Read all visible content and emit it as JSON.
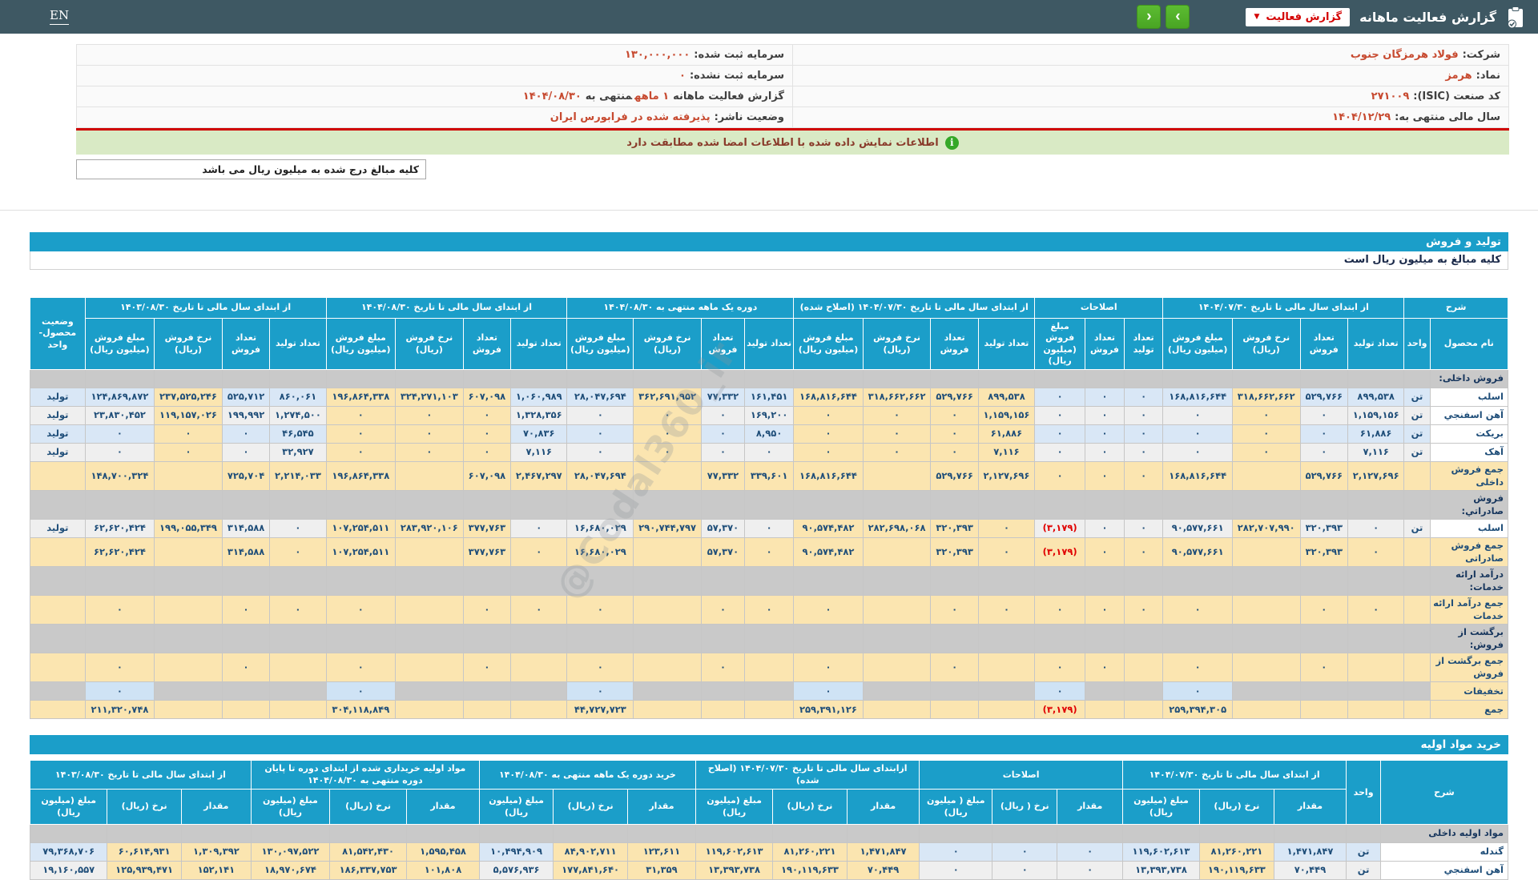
{
  "header": {
    "lang": "EN",
    "title": "گزارش فعالیت ماهانه",
    "dropdown_label": "گزارش فعالیت",
    "nav_prev": "‹",
    "nav_next": "›"
  },
  "info": {
    "rows": [
      {
        "right": {
          "label": "شرکت:",
          "value": "فولاد هرمزگان جنوب"
        },
        "left": {
          "label": "سرمایه ثبت شده:",
          "value": "۱۳۰,۰۰۰,۰۰۰"
        }
      },
      {
        "right": {
          "label": "نماد:",
          "value": "هرمز"
        },
        "left": {
          "label": "سرمایه ثبت نشده:",
          "value": "۰"
        }
      },
      {
        "right": {
          "label": "کد صنعت (ISIC):",
          "value": "۲۷۱۰۰۹"
        },
        "left": {
          "label": "گزارش فعالیت ماهانه",
          "value": "۱ ماهه",
          "label2": "منتهی به",
          "value2": "۱۴۰۴/۰۸/۳۰"
        }
      },
      {
        "right": {
          "label": "سال مالی منتهی به:",
          "value": "۱۴۰۴/۱۲/۲۹"
        },
        "left": {
          "label": "وضعیت ناشر:",
          "value": "پذیرفته شده در فرابورس ایران"
        }
      }
    ]
  },
  "notices": {
    "signed_match": "اطلاعات نمایش داده شده با اطلاعات امضا شده مطابقت دارد",
    "amounts_note": "کلیه مبالغ درج شده به میلیون ریال می باشد"
  },
  "sections": {
    "production": {
      "title": "تولید و فروش",
      "note": "کلیه مبالغ به میلیون ریال است"
    },
    "purchase": {
      "title": "خرید مواد اولیه"
    }
  },
  "watermark": "@Codal360_ir",
  "sales_table": {
    "header": [
      [
        {
          "t": "شرح",
          "cs": 2
        },
        {
          "t": "از ابتدای سال مالی تا تاریخ ۱۴۰۴/۰۷/۳۰",
          "cs": 4
        },
        {
          "t": "اصلاحات",
          "cs": 3
        },
        {
          "t": "از ابتدای سال مالی تا تاریخ ۱۴۰۴/۰۷/۳۰ (اصلاح شده)",
          "cs": 4
        },
        {
          "t": "دوره یک ماهه منتهی به ۱۴۰۴/۰۸/۳۰",
          "cs": 4
        },
        {
          "t": "از ابتدای سال مالی تا تاریخ ۱۴۰۴/۰۸/۳۰",
          "cs": 4
        },
        {
          "t": "از ابتدای سال مالی تا تاریخ ۱۴۰۳/۰۸/۳۰",
          "cs": 4
        },
        {
          "t": "وضعیت محصول-واحد",
          "rs": 2
        }
      ],
      [
        "نام محصول",
        "واحد",
        "تعداد تولید",
        "تعداد فروش",
        "نرخ فروش (ریال)",
        "مبلغ فروش (میلیون ریال)",
        "تعداد تولید",
        "تعداد فروش",
        "مبلغ فروش (میلیون ریال)",
        "تعداد تولید",
        "تعداد فروش",
        "نرخ فروش (ریال)",
        "مبلغ فروش (میلیون ریال)",
        "تعداد تولید",
        "تعداد فروش",
        "نرخ فروش (ریال)",
        "مبلغ فروش (میلیون ریال)",
        "تعداد تولید",
        "تعداد فروش",
        "نرخ فروش (ریال)",
        "مبلغ فروش (میلیون ریال)",
        "تعداد تولید",
        "تعداد فروش",
        "نرخ فروش (ریال)",
        "مبلغ فروش (میلیون ریال)"
      ]
    ],
    "rows": [
      {
        "type": "group",
        "cells": [
          "فروش داخلی:",
          "",
          "",
          "",
          "",
          "",
          "",
          "",
          "",
          "",
          "",
          "",
          "",
          "",
          "",
          "",
          "",
          "",
          "",
          "",
          "",
          "",
          "",
          "",
          "",
          ""
        ]
      },
      {
        "type": "data",
        "tint": "b",
        "cells": [
          "اسلب",
          "تن",
          "۸۹۹,۵۳۸",
          "۵۲۹,۷۶۶",
          "۳۱۸,۶۶۲,۶۶۲",
          "۱۶۸,۸۱۶,۶۴۴",
          "۰",
          "۰",
          "۰",
          "۸۹۹,۵۳۸",
          "۵۲۹,۷۶۶",
          "۳۱۸,۶۶۲,۶۶۲",
          "۱۶۸,۸۱۶,۶۴۴",
          "۱۶۱,۴۵۱",
          "۷۷,۳۳۲",
          "۳۶۲,۶۹۱,۹۵۲",
          "۲۸,۰۴۷,۶۹۴",
          "۱,۰۶۰,۹۸۹",
          "۶۰۷,۰۹۸",
          "۳۲۴,۲۷۱,۱۰۳",
          "۱۹۶,۸۶۴,۳۳۸",
          "۸۶۰,۰۶۱",
          "۵۲۵,۷۱۲",
          "۲۳۷,۵۲۵,۲۴۶",
          "۱۲۴,۸۶۹,۸۷۲",
          "تولید"
        ]
      },
      {
        "type": "data",
        "tint": "w",
        "cells": [
          "آهن اسفنجي",
          "تن",
          "۱,۱۵۹,۱۵۶",
          "۰",
          "۰",
          "۰",
          "۰",
          "۰",
          "۰",
          "۱,۱۵۹,۱۵۶",
          "۰",
          "۰",
          "۰",
          "۱۶۹,۲۰۰",
          "۰",
          "۰",
          "۰",
          "۱,۳۲۸,۳۵۶",
          "۰",
          "۰",
          "۰",
          "۱,۲۷۴,۵۰۰",
          "۱۹۹,۹۹۲",
          "۱۱۹,۱۵۷,۰۲۶",
          "۲۳,۸۳۰,۴۵۲",
          "تولید"
        ]
      },
      {
        "type": "data",
        "tint": "b",
        "cells": [
          "بریکت",
          "تن",
          "۶۱,۸۸۶",
          "۰",
          "۰",
          "۰",
          "۰",
          "۰",
          "۰",
          "۶۱,۸۸۶",
          "۰",
          "۰",
          "۰",
          "۸,۹۵۰",
          "۰",
          "۰",
          "۰",
          "۷۰,۸۳۶",
          "۰",
          "۰",
          "۰",
          "۴۶,۵۴۵",
          "۰",
          "۰",
          "۰",
          "تولید"
        ]
      },
      {
        "type": "data",
        "tint": "w",
        "cells": [
          "آهک",
          "تن",
          "۷,۱۱۶",
          "۰",
          "۰",
          "۰",
          "۰",
          "۰",
          "۰",
          "۷,۱۱۶",
          "۰",
          "۰",
          "۰",
          "۰",
          "۰",
          "۰",
          "۰",
          "۷,۱۱۶",
          "۰",
          "۰",
          "۰",
          "۳۲,۹۲۷",
          "۰",
          "۰",
          "۰",
          "تولید"
        ]
      },
      {
        "type": "total",
        "cells": [
          "جمع فروش داخلی",
          "",
          "۲,۱۲۷,۶۹۶",
          "۵۲۹,۷۶۶",
          "",
          "۱۶۸,۸۱۶,۶۴۴",
          "۰",
          "۰",
          "۰",
          "۲,۱۲۷,۶۹۶",
          "۵۲۹,۷۶۶",
          "",
          "۱۶۸,۸۱۶,۶۴۴",
          "۳۳۹,۶۰۱",
          "۷۷,۳۳۲",
          "",
          "۲۸,۰۴۷,۶۹۴",
          "۲,۴۶۷,۲۹۷",
          "۶۰۷,۰۹۸",
          "",
          "۱۹۶,۸۶۴,۳۳۸",
          "۲,۲۱۴,۰۳۳",
          "۷۲۵,۷۰۴",
          "",
          "۱۴۸,۷۰۰,۳۲۴",
          ""
        ]
      },
      {
        "type": "group",
        "cells": [
          "فروش صادراتي:",
          "",
          "",
          "",
          "",
          "",
          "",
          "",
          "",
          "",
          "",
          "",
          "",
          "",
          "",
          "",
          "",
          "",
          "",
          "",
          "",
          "",
          "",
          "",
          "",
          ""
        ]
      },
      {
        "type": "data",
        "tint": "w",
        "cells": [
          "اسلب",
          "تن",
          "۰",
          "۳۲۰,۳۹۳",
          "۲۸۲,۷۰۷,۹۹۰",
          "۹۰,۵۷۷,۶۶۱",
          "۰",
          "۰",
          "(۳,۱۷۹)",
          "۰",
          "۳۲۰,۳۹۳",
          "۲۸۲,۶۹۸,۰۶۸",
          "۹۰,۵۷۴,۴۸۲",
          "۰",
          "۵۷,۳۷۰",
          "۲۹۰,۷۴۴,۷۹۷",
          "۱۶,۶۸۰,۰۲۹",
          "۰",
          "۳۷۷,۷۶۳",
          "۲۸۳,۹۲۰,۱۰۶",
          "۱۰۷,۲۵۴,۵۱۱",
          "۰",
          "۳۱۴,۵۸۸",
          "۱۹۹,۰۵۵,۳۴۹",
          "۶۲,۶۲۰,۴۲۴",
          "تولید"
        ]
      },
      {
        "type": "total",
        "cells": [
          "جمع فروش صادراتی",
          "",
          "۰",
          "۳۲۰,۳۹۳",
          "",
          "۹۰,۵۷۷,۶۶۱",
          "۰",
          "۰",
          "(۳,۱۷۹)",
          "۰",
          "۳۲۰,۳۹۳",
          "",
          "۹۰,۵۷۴,۴۸۲",
          "۰",
          "۵۷,۳۷۰",
          "",
          "۱۶,۶۸۰,۰۲۹",
          "۰",
          "۳۷۷,۷۶۳",
          "",
          "۱۰۷,۲۵۴,۵۱۱",
          "۰",
          "۳۱۴,۵۸۸",
          "",
          "۶۲,۶۲۰,۴۲۴",
          ""
        ]
      },
      {
        "type": "group",
        "cells": [
          "درآمد ارائه خدمات:",
          "",
          "",
          "",
          "",
          "",
          "",
          "",
          "",
          "",
          "",
          "",
          "",
          "",
          "",
          "",
          "",
          "",
          "",
          "",
          "",
          "",
          "",
          "",
          "",
          ""
        ]
      },
      {
        "type": "total",
        "cells": [
          "جمع درآمد ارائه خدمات",
          "",
          "۰",
          "۰",
          "",
          "۰",
          "۰",
          "۰",
          "۰",
          "۰",
          "۰",
          "",
          "۰",
          "۰",
          "۰",
          "",
          "۰",
          "۰",
          "۰",
          "",
          "۰",
          "۰",
          "۰",
          "",
          "۰",
          ""
        ]
      },
      {
        "type": "group",
        "cells": [
          "برگشت از فروش:",
          "",
          "",
          "",
          "",
          "",
          "",
          "",
          "",
          "",
          "",
          "",
          "",
          "",
          "",
          "",
          "",
          "",
          "",
          "",
          "",
          "",
          "",
          "",
          "",
          ""
        ]
      },
      {
        "type": "total",
        "cells": [
          "جمع برگشت از فروش",
          "",
          "",
          "۰",
          "",
          "۰",
          "",
          "۰",
          "۰",
          "",
          "۰",
          "",
          "۰",
          "",
          "۰",
          "",
          "۰",
          "",
          "۰",
          "",
          "۰",
          "",
          "۰",
          "",
          "۰",
          ""
        ]
      },
      {
        "type": "disc",
        "cells": [
          "تخفیفات",
          "",
          "",
          "",
          "",
          "۰",
          "",
          "",
          "۰",
          "",
          "",
          "",
          "۰",
          "",
          "",
          "",
          "۰",
          "",
          "",
          "",
          "۰",
          "",
          "",
          "",
          "۰",
          ""
        ]
      },
      {
        "type": "grand",
        "cells": [
          "جمع",
          "",
          "",
          "",
          "",
          "۲۵۹,۳۹۴,۳۰۵",
          "",
          "",
          "(۳,۱۷۹)",
          "",
          "",
          "",
          "۲۵۹,۳۹۱,۱۲۶",
          "",
          "",
          "",
          "۴۴,۷۲۷,۷۲۳",
          "",
          "",
          "",
          "۳۰۴,۱۱۸,۸۴۹",
          "",
          "",
          "",
          "۲۱۱,۳۲۰,۷۴۸",
          ""
        ]
      }
    ]
  },
  "purchase_table": {
    "header": [
      [
        {
          "t": "شرح",
          "rs": 2
        },
        {
          "t": "واحد",
          "rs": 2
        },
        {
          "t": "از ابتدای سال مالی تا تاریخ ۱۴۰۴/۰۷/۳۰",
          "cs": 3
        },
        {
          "t": "اصلاحات",
          "cs": 3
        },
        {
          "t": "ازابتدای سال مالی تا تاریخ ۱۴۰۴/۰۷/۳۰ (اصلاح شده)",
          "cs": 3
        },
        {
          "t": "خرید دوره یک ماهه منتهی به ۱۴۰۴/۰۸/۳۰",
          "cs": 3
        },
        {
          "t": "مواد اولیه خریداری شده از ابتدای دوره تا پایان دوره منتهی به ۱۴۰۴/۰۸/۳۰",
          "cs": 3
        },
        {
          "t": "از ابتدای سال مالی تا تاریخ ۱۴۰۳/۰۸/۳۰",
          "cs": 3
        }
      ],
      [
        "مقدار",
        "نرخ (ریال)",
        "مبلغ (میلیون ریال)",
        "مقدار",
        "نرخ ( ریال)",
        "مبلغ ( میلیون ریال)",
        "مقدار",
        "نرخ (ریال)",
        "مبلغ (میلیون ریال)",
        "مقدار",
        "نرخ (ریال)",
        "مبلغ (میلیون ریال)",
        "مقدار",
        "نرخ (ریال)",
        "مبلغ (میلیون ریال)",
        "مقدار",
        "نرخ (ریال)",
        "مبلغ (میلیون ریال)"
      ]
    ],
    "rows": [
      {
        "type": "group",
        "cells": [
          "مواد اولیه داخلی",
          "",
          "",
          "",
          "",
          "",
          "",
          "",
          "",
          "",
          "",
          "",
          "",
          "",
          "",
          "",
          "",
          "",
          "",
          ""
        ]
      },
      {
        "type": "data",
        "tint": "b",
        "cells": [
          "گندله",
          "تن",
          "۱,۴۷۱,۸۴۷",
          "۸۱,۲۶۰,۲۲۱",
          "۱۱۹,۶۰۲,۶۱۳",
          "۰",
          "۰",
          "۰",
          "۱,۴۷۱,۸۴۷",
          "۸۱,۲۶۰,۲۲۱",
          "۱۱۹,۶۰۲,۶۱۳",
          "۱۲۳,۶۱۱",
          "۸۴,۹۰۲,۷۱۱",
          "۱۰,۴۹۴,۹۰۹",
          "۱,۵۹۵,۴۵۸",
          "۸۱,۵۴۲,۴۳۰",
          "۱۳۰,۰۹۷,۵۲۲",
          "۱,۳۰۹,۳۹۲",
          "۶۰,۶۱۴,۹۳۱",
          "۷۹,۳۶۸,۷۰۶"
        ]
      },
      {
        "type": "data",
        "tint": "w",
        "cells": [
          "آهن اسفنجي",
          "تن",
          "۷۰,۴۴۹",
          "۱۹۰,۱۱۹,۶۳۳",
          "۱۳,۳۹۳,۷۳۸",
          "۰",
          "۰",
          "۰",
          "۷۰,۴۴۹",
          "۱۹۰,۱۱۹,۶۳۳",
          "۱۳,۳۹۳,۷۳۸",
          "۳۱,۳۵۹",
          "۱۷۷,۸۴۱,۶۴۰",
          "۵,۵۷۶,۹۳۶",
          "۱۰۱,۸۰۸",
          "۱۸۶,۳۳۷,۷۵۳",
          "۱۸,۹۷۰,۶۷۴",
          "۱۵۲,۱۴۱",
          "۱۲۵,۹۳۹,۴۷۱",
          "۱۹,۱۶۰,۵۵۷"
        ]
      }
    ]
  }
}
